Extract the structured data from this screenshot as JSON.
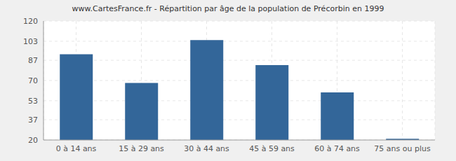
{
  "chart_data": {
    "type": "bar",
    "title": "www.CartesFrance.fr - Répartition par âge de la population de Précorbin en 1999",
    "categories": [
      "0 à 14 ans",
      "15 à 29 ans",
      "30 à 44 ans",
      "45 à 59 ans",
      "60 à 74 ans",
      "75 ans ou plus"
    ],
    "values": [
      92,
      68,
      104,
      83,
      60,
      21
    ],
    "color": "#336699",
    "ylim": [
      20,
      120
    ],
    "yticks": [
      20,
      37,
      53,
      70,
      87,
      103,
      120
    ],
    "grid": true
  }
}
